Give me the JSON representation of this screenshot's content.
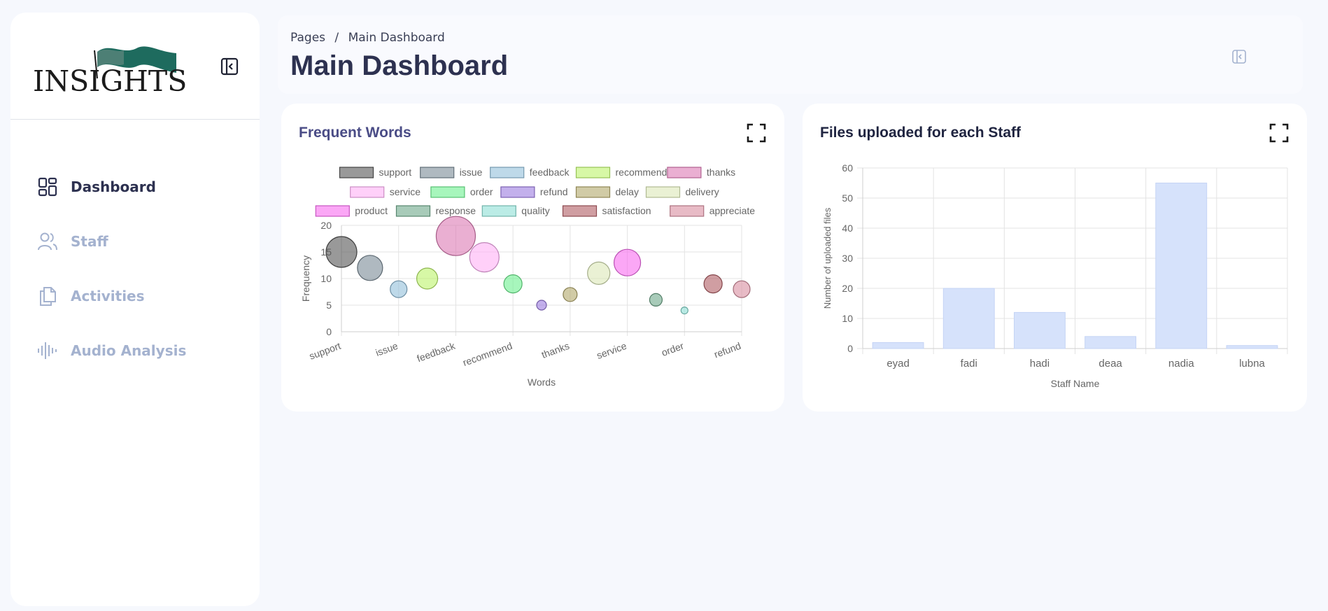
{
  "sidebar": {
    "logo_text": "INSIGHTS",
    "items": [
      {
        "label": "Dashboard",
        "icon": "dashboard-icon",
        "active": true
      },
      {
        "label": "Staff",
        "icon": "users-icon",
        "active": false
      },
      {
        "label": "Activities",
        "icon": "documents-icon",
        "active": false
      },
      {
        "label": "Audio Analysis",
        "icon": "audio-wave-icon",
        "active": false
      }
    ]
  },
  "header": {
    "breadcrumb_root": "Pages",
    "breadcrumb_sep": "/",
    "breadcrumb_current": "Main Dashboard",
    "title": "Main Dashboard"
  },
  "cards": {
    "words": {
      "title": "Frequent Words"
    },
    "files": {
      "title": "Files uploaded for each Staff"
    }
  },
  "colors": {
    "accent": "#2d3150",
    "muted": "#a4b2cf",
    "bar": "#d6e2fb",
    "bar_border": "#c5d4f5"
  },
  "chart_data": [
    {
      "type": "scatter",
      "subtype": "bubble",
      "title": "",
      "xlabel": "Words",
      "ylabel": "Frequency",
      "ylim": [
        0,
        20
      ],
      "yticks": [
        0,
        5,
        10,
        15,
        20
      ],
      "xtick_labels": [
        "support",
        "issue",
        "feedback",
        "recommend",
        "thanks",
        "service",
        "order",
        "refund"
      ],
      "legend_position": "top",
      "grid": true,
      "series": [
        {
          "name": "support",
          "x": 0,
          "y": 15,
          "r": 22,
          "color": "#555555"
        },
        {
          "name": "issue",
          "x": 1,
          "y": 12,
          "r": 18,
          "color": "#7a8b96"
        },
        {
          "name": "feedback",
          "x": 2,
          "y": 8,
          "r": 12,
          "color": "#93bfdb"
        },
        {
          "name": "recommend",
          "x": 3,
          "y": 10,
          "r": 15,
          "color": "#bdf36b"
        },
        {
          "name": "thanks",
          "x": 4,
          "y": 18,
          "r": 28,
          "color": "#dc7ab4"
        },
        {
          "name": "service",
          "x": 5,
          "y": 14,
          "r": 21,
          "color": "#ffb0f5"
        },
        {
          "name": "order",
          "x": 6,
          "y": 9,
          "r": 13,
          "color": "#6df08f"
        },
        {
          "name": "refund",
          "x": 7,
          "y": 5,
          "r": 7,
          "color": "#9b7bdf"
        },
        {
          "name": "delay",
          "x": 8,
          "y": 7,
          "r": 10,
          "color": "#b3a86a"
        },
        {
          "name": "delivery",
          "x": 9,
          "y": 11,
          "r": 16,
          "color": "#dce8b8"
        },
        {
          "name": "product",
          "x": 10,
          "y": 13,
          "r": 19,
          "color": "#f86cf0"
        },
        {
          "name": "response",
          "x": 11,
          "y": 6,
          "r": 9,
          "color": "#6ea88b"
        },
        {
          "name": "quality",
          "x": 12,
          "y": 4,
          "r": 5,
          "color": "#8de0d5"
        },
        {
          "name": "satisfaction",
          "x": 13,
          "y": 9,
          "r": 13,
          "color": "#b05d64"
        },
        {
          "name": "appreciate",
          "x": 14,
          "y": 8,
          "r": 12,
          "color": "#d88ea0"
        }
      ]
    },
    {
      "type": "bar",
      "title": "",
      "xlabel": "Staff Name",
      "ylabel": "Number of uploaded files",
      "ylim": [
        0,
        60
      ],
      "yticks": [
        0,
        10,
        20,
        30,
        40,
        50,
        60
      ],
      "grid": true,
      "categories": [
        "eyad",
        "fadi",
        "hadi",
        "deaa",
        "nadia",
        "lubna"
      ],
      "values": [
        2,
        20,
        12,
        4,
        55,
        1
      ]
    }
  ]
}
